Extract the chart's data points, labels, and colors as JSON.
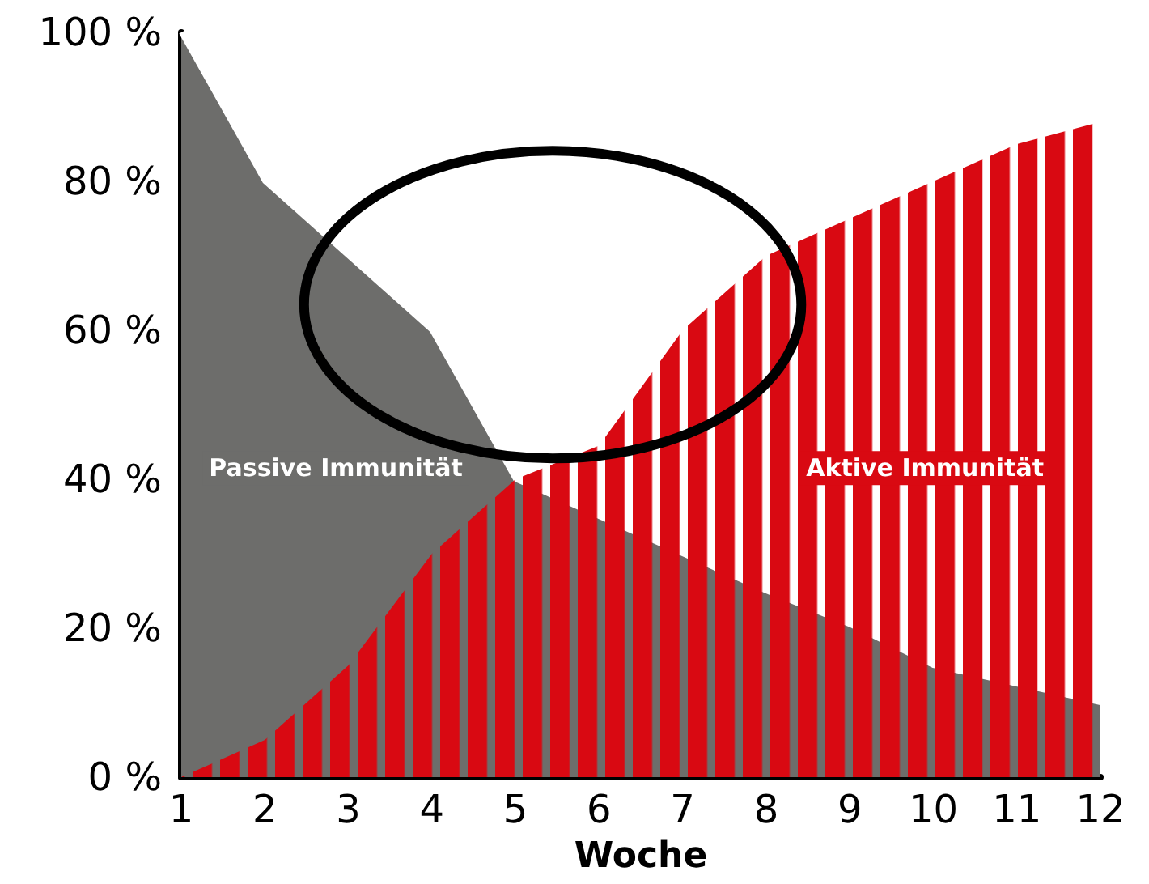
{
  "chart_data": {
    "type": "area",
    "xlabel": "Woche",
    "x": [
      1,
      2,
      3,
      4,
      5,
      6,
      7,
      8,
      9,
      10,
      11,
      12
    ],
    "series": [
      {
        "name": "Passive Immunität",
        "color": "#6d6d6b",
        "values": [
          100,
          80,
          70,
          60,
          40,
          35,
          30,
          25,
          20.5,
          15,
          12.5,
          10
        ]
      },
      {
        "name": "Aktive Immunität",
        "color": "#d90912",
        "values": [
          0,
          5,
          15,
          30,
          40,
          44.5,
          60,
          70,
          75,
          80,
          85,
          88
        ]
      }
    ],
    "xlim": [
      1,
      12
    ],
    "xticks": [
      1,
      2,
      3,
      4,
      5,
      6,
      7,
      8,
      9,
      10,
      11,
      12
    ],
    "ylim": [
      0,
      100
    ],
    "yticks": [
      {
        "value": 0,
        "label": "0 %"
      },
      {
        "value": 20,
        "label": "20 %"
      },
      {
        "value": 40,
        "label": "40 %"
      },
      {
        "value": 60,
        "label": "60 %"
      },
      {
        "value": 80,
        "label": "80 %"
      },
      {
        "value": 100,
        "label": "100 %"
      }
    ],
    "grid": false,
    "legend": false,
    "marker": "none"
  }
}
